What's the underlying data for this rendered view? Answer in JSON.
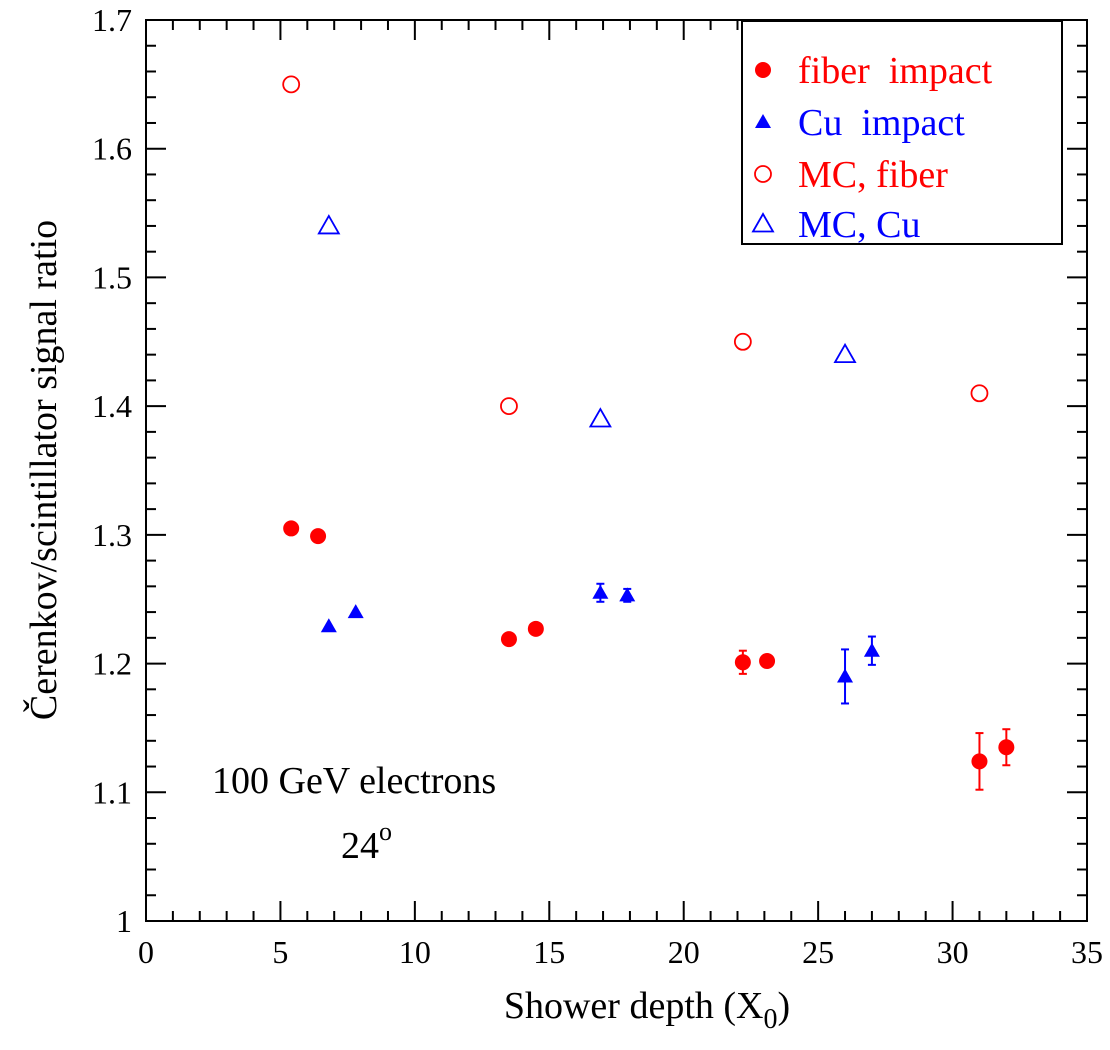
{
  "chart_data": {
    "type": "scatter",
    "xlabel": "Shower depth (X",
    "xlabel_sub": "0",
    "xlabel_close": ")",
    "ylabel": "Čerenkov/scintillator signal ratio",
    "xlim": [
      0,
      35
    ],
    "ylim": [
      1.0,
      1.7
    ],
    "x_ticks": [
      0,
      5,
      10,
      15,
      20,
      25,
      30,
      35
    ],
    "y_ticks": [
      1,
      1.1,
      1.2,
      1.3,
      1.4,
      1.5,
      1.6,
      1.7
    ],
    "x_tick_labels": [
      "0",
      "5",
      "10",
      "15",
      "20",
      "25",
      "30",
      "35"
    ],
    "y_tick_labels": [
      "1",
      "1.1",
      "1.2",
      "1.3",
      "1.4",
      "1.5",
      "1.6",
      "1.7"
    ],
    "grid": false,
    "legend_position": "top-right",
    "colors": {
      "fiber": "#ff0000",
      "cu": "#0000ff"
    },
    "annotations": {
      "line1": "100 GeV electrons",
      "line2": "24",
      "line2_sup": "o"
    },
    "series": [
      {
        "name": "fiber impact",
        "legend_parts": [
          "fiber",
          "impact"
        ],
        "marker": "circle-filled",
        "color": "#ff0000",
        "points": [
          {
            "x": 5.4,
            "y": 1.305,
            "err": 0
          },
          {
            "x": 6.4,
            "y": 1.299,
            "err": 0
          },
          {
            "x": 13.5,
            "y": 1.219,
            "err": 0
          },
          {
            "x": 14.5,
            "y": 1.227,
            "err": 0
          },
          {
            "x": 22.2,
            "y": 1.201,
            "err": 0.009
          },
          {
            "x": 23.1,
            "y": 1.202,
            "err": 0
          },
          {
            "x": 31.0,
            "y": 1.124,
            "err": 0.022
          },
          {
            "x": 32.0,
            "y": 1.135,
            "err": 0.014
          }
        ]
      },
      {
        "name": "Cu impact",
        "legend_parts": [
          "Cu",
          "impact"
        ],
        "marker": "triangle-filled",
        "color": "#0000ff",
        "points": [
          {
            "x": 6.8,
            "y": 1.229,
            "err": 0
          },
          {
            "x": 7.8,
            "y": 1.24,
            "err": 0
          },
          {
            "x": 16.9,
            "y": 1.255,
            "err": 0.007
          },
          {
            "x": 17.9,
            "y": 1.253,
            "err": 0.005
          },
          {
            "x": 26.0,
            "y": 1.19,
            "err": 0.021
          },
          {
            "x": 27.0,
            "y": 1.21,
            "err": 0.011
          }
        ]
      },
      {
        "name": "MC, fiber",
        "legend_parts": [
          "MC, fiber"
        ],
        "marker": "circle-open",
        "color": "#ff0000",
        "points": [
          {
            "x": 5.4,
            "y": 1.65,
            "err": 0
          },
          {
            "x": 13.5,
            "y": 1.4,
            "err": 0
          },
          {
            "x": 22.2,
            "y": 1.45,
            "err": 0
          },
          {
            "x": 31.0,
            "y": 1.41,
            "err": 0
          }
        ]
      },
      {
        "name": "MC, Cu",
        "legend_parts": [
          "MC, Cu"
        ],
        "marker": "triangle-open",
        "color": "#0000ff",
        "points": [
          {
            "x": 6.8,
            "y": 1.54,
            "err": 0
          },
          {
            "x": 16.9,
            "y": 1.39,
            "err": 0
          },
          {
            "x": 26.0,
            "y": 1.44,
            "err": 0
          }
        ]
      }
    ]
  }
}
